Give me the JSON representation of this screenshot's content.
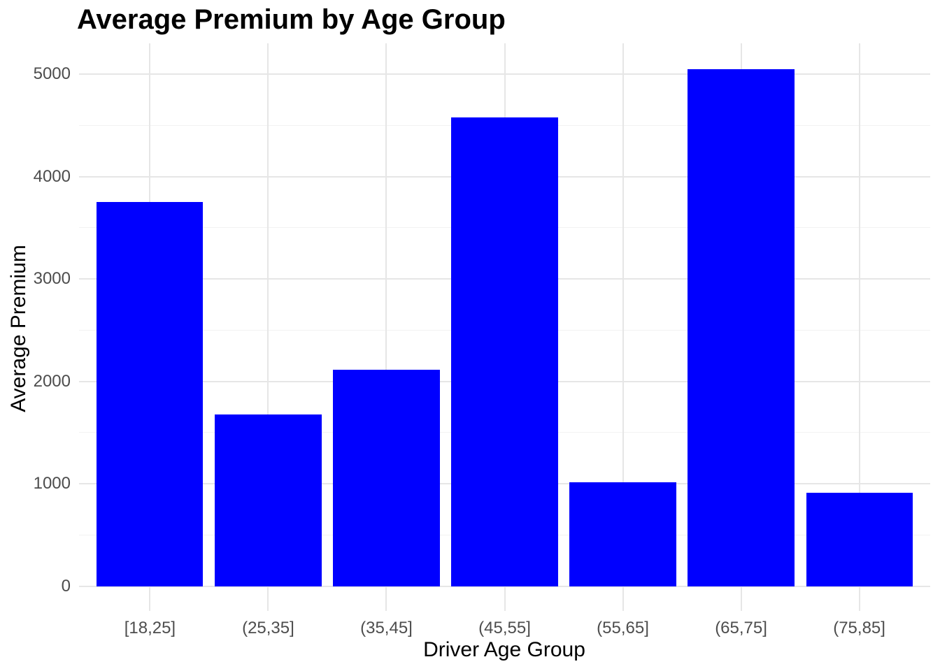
{
  "title": "Average Premium by Age Group",
  "chart_data": {
    "type": "bar",
    "title": "Average Premium by Age Group",
    "xlabel": "Driver Age Group",
    "ylabel": "Average Premium",
    "categories": [
      "[18,25]",
      "(25,35]",
      "(35,45]",
      "(45,55]",
      "(55,65]",
      "(65,75]",
      "(75,85]"
    ],
    "values": [
      3750,
      1680,
      2115,
      4575,
      1015,
      5050,
      915
    ],
    "y_ticks": [
      0,
      1000,
      2000,
      3000,
      4000,
      5000
    ],
    "y_minor_ticks": [
      500,
      1500,
      2500,
      3500,
      4500
    ],
    "ylim": [
      -240,
      5300
    ],
    "grid": "on",
    "legend": "none"
  },
  "colors": {
    "bar": "#0000ff",
    "grid_major": "#e6e6e6",
    "grid_minor": "#f2f2f2",
    "tick_label": "#4d4d4d",
    "axis_title": "#000000",
    "title": "#000000",
    "background": "#ffffff"
  }
}
